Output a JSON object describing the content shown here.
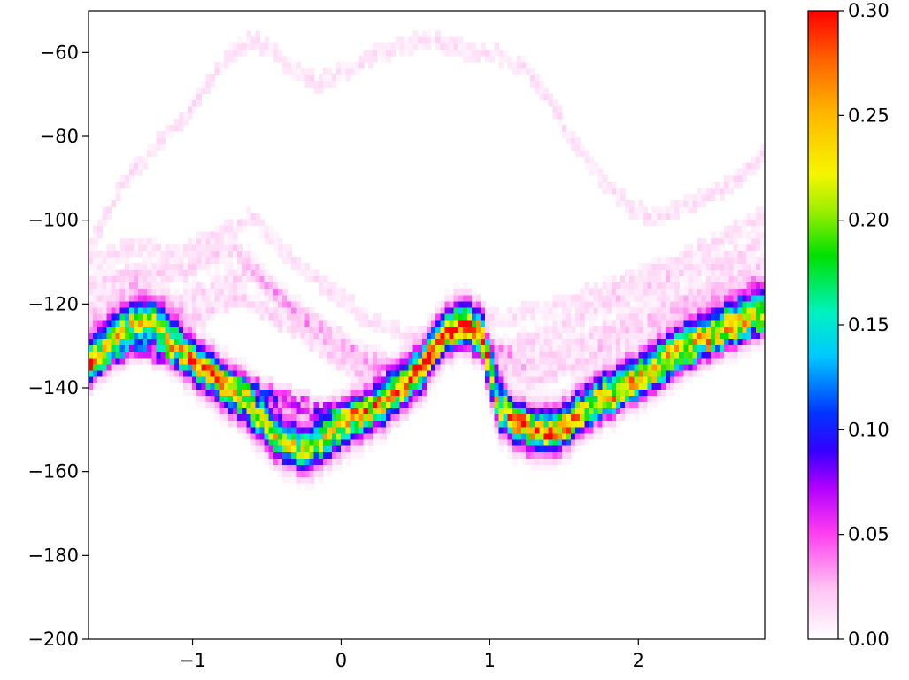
{
  "chart_data": {
    "type": "heatmap",
    "title": "",
    "xlabel": "",
    "ylabel": "",
    "xlim": [
      -1.7,
      2.85
    ],
    "ylim": [
      -200,
      -50
    ],
    "x_ticks": [
      -1,
      0,
      1,
      2
    ],
    "x_tick_labels": [
      "−1",
      "0",
      "1",
      "2"
    ],
    "y_ticks": [
      -60,
      -80,
      -100,
      -120,
      -140,
      -160,
      -180,
      -200
    ],
    "y_tick_labels": [
      "−60",
      "−80",
      "−100",
      "−120",
      "−140",
      "−160",
      "−180",
      "−200"
    ],
    "colorbar": {
      "colormap": "gist_ncar-like (white → pink → magenta → blue → cyan → green → yellow → orange → red)",
      "range": [
        0.0,
        0.3
      ],
      "ticks": [
        0.0,
        0.05,
        0.1,
        0.15,
        0.2,
        0.25,
        0.3
      ],
      "tick_labels": [
        "0.00",
        "0.05",
        "0.10",
        "0.15",
        "0.20",
        "0.25",
        "0.30"
      ]
    },
    "grid": false,
    "series": [
      {
        "role": "main dense band",
        "peak_density": 0.22,
        "points": [
          [
            -1.7,
            -134
          ],
          [
            -1.55,
            -128
          ],
          [
            -1.4,
            -125
          ],
          [
            -1.25,
            -125
          ],
          [
            -1.1,
            -130
          ],
          [
            -0.95,
            -135
          ],
          [
            -0.8,
            -139
          ],
          [
            -0.65,
            -143
          ],
          [
            -0.5,
            -149
          ],
          [
            -0.4,
            -152
          ],
          [
            -0.3,
            -154
          ],
          [
            -0.2,
            -154
          ],
          [
            -0.1,
            -152
          ],
          [
            0.0,
            -149
          ],
          [
            0.15,
            -146
          ],
          [
            0.3,
            -143
          ],
          [
            0.45,
            -139
          ],
          [
            0.55,
            -135
          ],
          [
            0.65,
            -129
          ],
          [
            0.75,
            -125
          ],
          [
            0.85,
            -124
          ],
          [
            0.95,
            -127
          ],
          [
            1.05,
            -144
          ],
          [
            1.15,
            -148
          ],
          [
            1.3,
            -150
          ],
          [
            1.45,
            -150
          ],
          [
            1.6,
            -146
          ],
          [
            1.8,
            -141
          ],
          [
            2.0,
            -137
          ],
          [
            2.2,
            -132
          ],
          [
            2.4,
            -128
          ],
          [
            2.6,
            -125
          ],
          [
            2.85,
            -121
          ]
        ]
      },
      {
        "role": "secondary band",
        "peak_density": 0.08,
        "points": [
          [
            -1.7,
            -136
          ],
          [
            -1.4,
            -130
          ],
          [
            -1.1,
            -133
          ],
          [
            -0.8,
            -137
          ],
          [
            -0.5,
            -141
          ],
          [
            -0.2,
            -145
          ],
          [
            0.1,
            -146
          ],
          [
            0.4,
            -141
          ],
          [
            0.7,
            -128
          ],
          [
            0.85,
            -126
          ],
          [
            1.0,
            -132
          ],
          [
            1.15,
            -147
          ],
          [
            1.4,
            -152
          ],
          [
            1.7,
            -146
          ],
          [
            2.0,
            -140
          ],
          [
            2.3,
            -134
          ],
          [
            2.6,
            -128
          ],
          [
            2.85,
            -125
          ]
        ]
      },
      {
        "role": "upper faint band",
        "peak_density": 0.02,
        "points": [
          [
            -1.7,
            -116
          ],
          [
            -1.4,
            -112
          ],
          [
            -1.1,
            -113
          ],
          [
            -0.9,
            -109
          ],
          [
            -0.7,
            -107
          ],
          [
            -0.5,
            -115
          ],
          [
            -0.2,
            -125
          ],
          [
            0.1,
            -133
          ],
          [
            0.4,
            -135
          ],
          [
            0.7,
            -128
          ],
          [
            0.9,
            -130
          ],
          [
            1.1,
            -131
          ],
          [
            1.4,
            -127
          ],
          [
            1.7,
            -121
          ],
          [
            2.0,
            -117
          ],
          [
            2.3,
            -113
          ],
          [
            2.6,
            -110
          ],
          [
            2.85,
            -104
          ]
        ]
      },
      {
        "role": "upper faint band",
        "peak_density": 0.02,
        "points": [
          [
            -1.7,
            -122
          ],
          [
            -1.4,
            -116
          ],
          [
            -1.1,
            -120
          ],
          [
            -0.8,
            -115
          ],
          [
            -0.6,
            -112
          ],
          [
            -0.3,
            -122
          ],
          [
            0.0,
            -128
          ],
          [
            0.3,
            -136
          ],
          [
            0.6,
            -131
          ],
          [
            0.9,
            -126
          ],
          [
            1.2,
            -134
          ],
          [
            1.5,
            -131
          ],
          [
            1.8,
            -126
          ],
          [
            2.1,
            -121
          ],
          [
            2.4,
            -117
          ],
          [
            2.85,
            -111
          ]
        ]
      },
      {
        "role": "upper faint band",
        "peak_density": 0.02,
        "points": [
          [
            -1.7,
            -126
          ],
          [
            -1.4,
            -121
          ],
          [
            -1.0,
            -124
          ],
          [
            -0.7,
            -118
          ],
          [
            -0.4,
            -124
          ],
          [
            -0.1,
            -131
          ],
          [
            0.2,
            -138
          ],
          [
            0.5,
            -136
          ],
          [
            0.8,
            -127
          ],
          [
            1.0,
            -133
          ],
          [
            1.3,
            -138
          ],
          [
            1.6,
            -134
          ],
          [
            1.9,
            -128
          ],
          [
            2.2,
            -123
          ],
          [
            2.5,
            -119
          ],
          [
            2.85,
            -115
          ]
        ]
      },
      {
        "role": "upper faint band",
        "peak_density": 0.015,
        "points": [
          [
            -1.7,
            -110
          ],
          [
            -1.4,
            -106
          ],
          [
            -1.1,
            -108
          ],
          [
            -0.8,
            -103
          ],
          [
            -0.6,
            -99
          ],
          [
            -0.4,
            -107
          ],
          [
            -0.1,
            -116
          ],
          [
            0.2,
            -124
          ],
          [
            0.5,
            -128
          ],
          [
            0.8,
            -124
          ],
          [
            1.1,
            -123
          ],
          [
            1.4,
            -121
          ],
          [
            1.7,
            -117
          ],
          [
            2.0,
            -113
          ],
          [
            2.3,
            -109
          ],
          [
            2.6,
            -104
          ],
          [
            2.85,
            -98
          ]
        ]
      },
      {
        "role": "top faint band",
        "peak_density": 0.015,
        "points": [
          [
            -1.7,
            -107
          ],
          [
            -1.5,
            -93
          ],
          [
            -1.3,
            -84
          ],
          [
            -1.1,
            -77
          ],
          [
            -0.9,
            -68
          ],
          [
            -0.75,
            -60
          ],
          [
            -0.6,
            -57
          ],
          [
            -0.45,
            -60
          ],
          [
            -0.3,
            -65
          ],
          [
            -0.15,
            -67
          ],
          [
            0.0,
            -65
          ],
          [
            0.2,
            -61
          ],
          [
            0.4,
            -59
          ],
          [
            0.55,
            -57
          ],
          [
            0.7,
            -58
          ],
          [
            0.9,
            -60
          ],
          [
            1.1,
            -61
          ],
          [
            1.25,
            -64
          ],
          [
            1.4,
            -72
          ],
          [
            1.55,
            -80
          ],
          [
            1.7,
            -88
          ],
          [
            1.85,
            -94
          ],
          [
            2.0,
            -98
          ],
          [
            2.15,
            -99
          ],
          [
            2.35,
            -96
          ],
          [
            2.55,
            -93
          ],
          [
            2.7,
            -89
          ],
          [
            2.85,
            -84
          ]
        ]
      }
    ]
  }
}
